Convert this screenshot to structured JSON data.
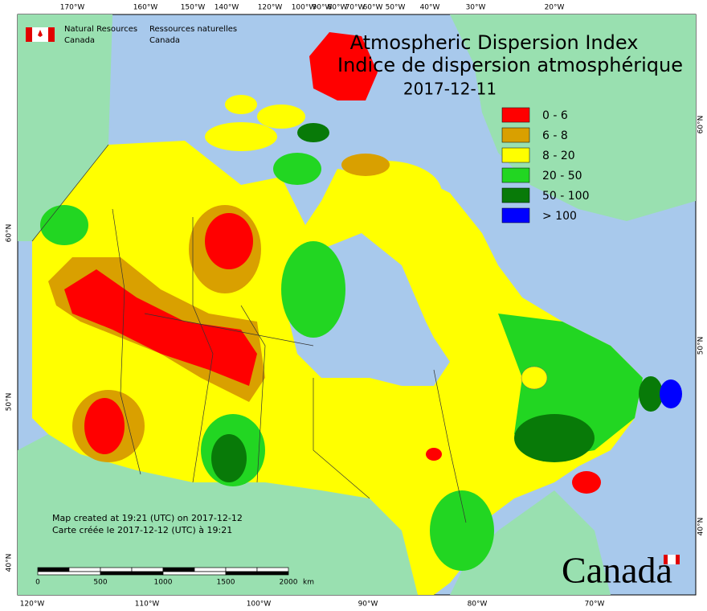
{
  "header": {
    "org_en": [
      "Natural Resources",
      "Canada"
    ],
    "org_fr": [
      "Ressources naturelles",
      "Canada"
    ]
  },
  "title": {
    "line1": "Atmospheric Dispersion Index",
    "line2": "Indice de dispersion atmosphérique",
    "date": "2017-12-11"
  },
  "legend": [
    {
      "label": "0 - 6",
      "color": "#ff0000"
    },
    {
      "label": "6 - 8",
      "color": "#d9a000"
    },
    {
      "label": "8 - 20",
      "color": "#ffff00"
    },
    {
      "label": "20 - 50",
      "color": "#22d622"
    },
    {
      "label": "50 - 100",
      "color": "#087a08"
    },
    {
      "label": "> 100",
      "color": "#0000ff"
    }
  ],
  "graticule": {
    "top": [
      "170°W",
      "160°W",
      "150°W",
      "140°W",
      "120°W",
      "100°W",
      "90°W",
      "80°W",
      "70°W",
      "60°W",
      "50°W",
      "40°W",
      "30°W",
      "20°W"
    ],
    "bottom": [
      "120°W",
      "110°W",
      "100°W",
      "90°W",
      "80°W",
      "70°W"
    ],
    "left": [
      "60°N",
      "50°N",
      "40°N"
    ],
    "right": [
      "60°N",
      "50°N",
      "40°N"
    ]
  },
  "credits": [
    "Map created at 19:21 (UTC) on 2017-12-12",
    "Carte créée le 2017-12-12 (UTC) à 19:21"
  ],
  "scale_bar": {
    "labels": [
      "0",
      "500",
      "1000",
      "1500",
      "2000"
    ],
    "unit": "km"
  },
  "wordmark": "Canada"
}
